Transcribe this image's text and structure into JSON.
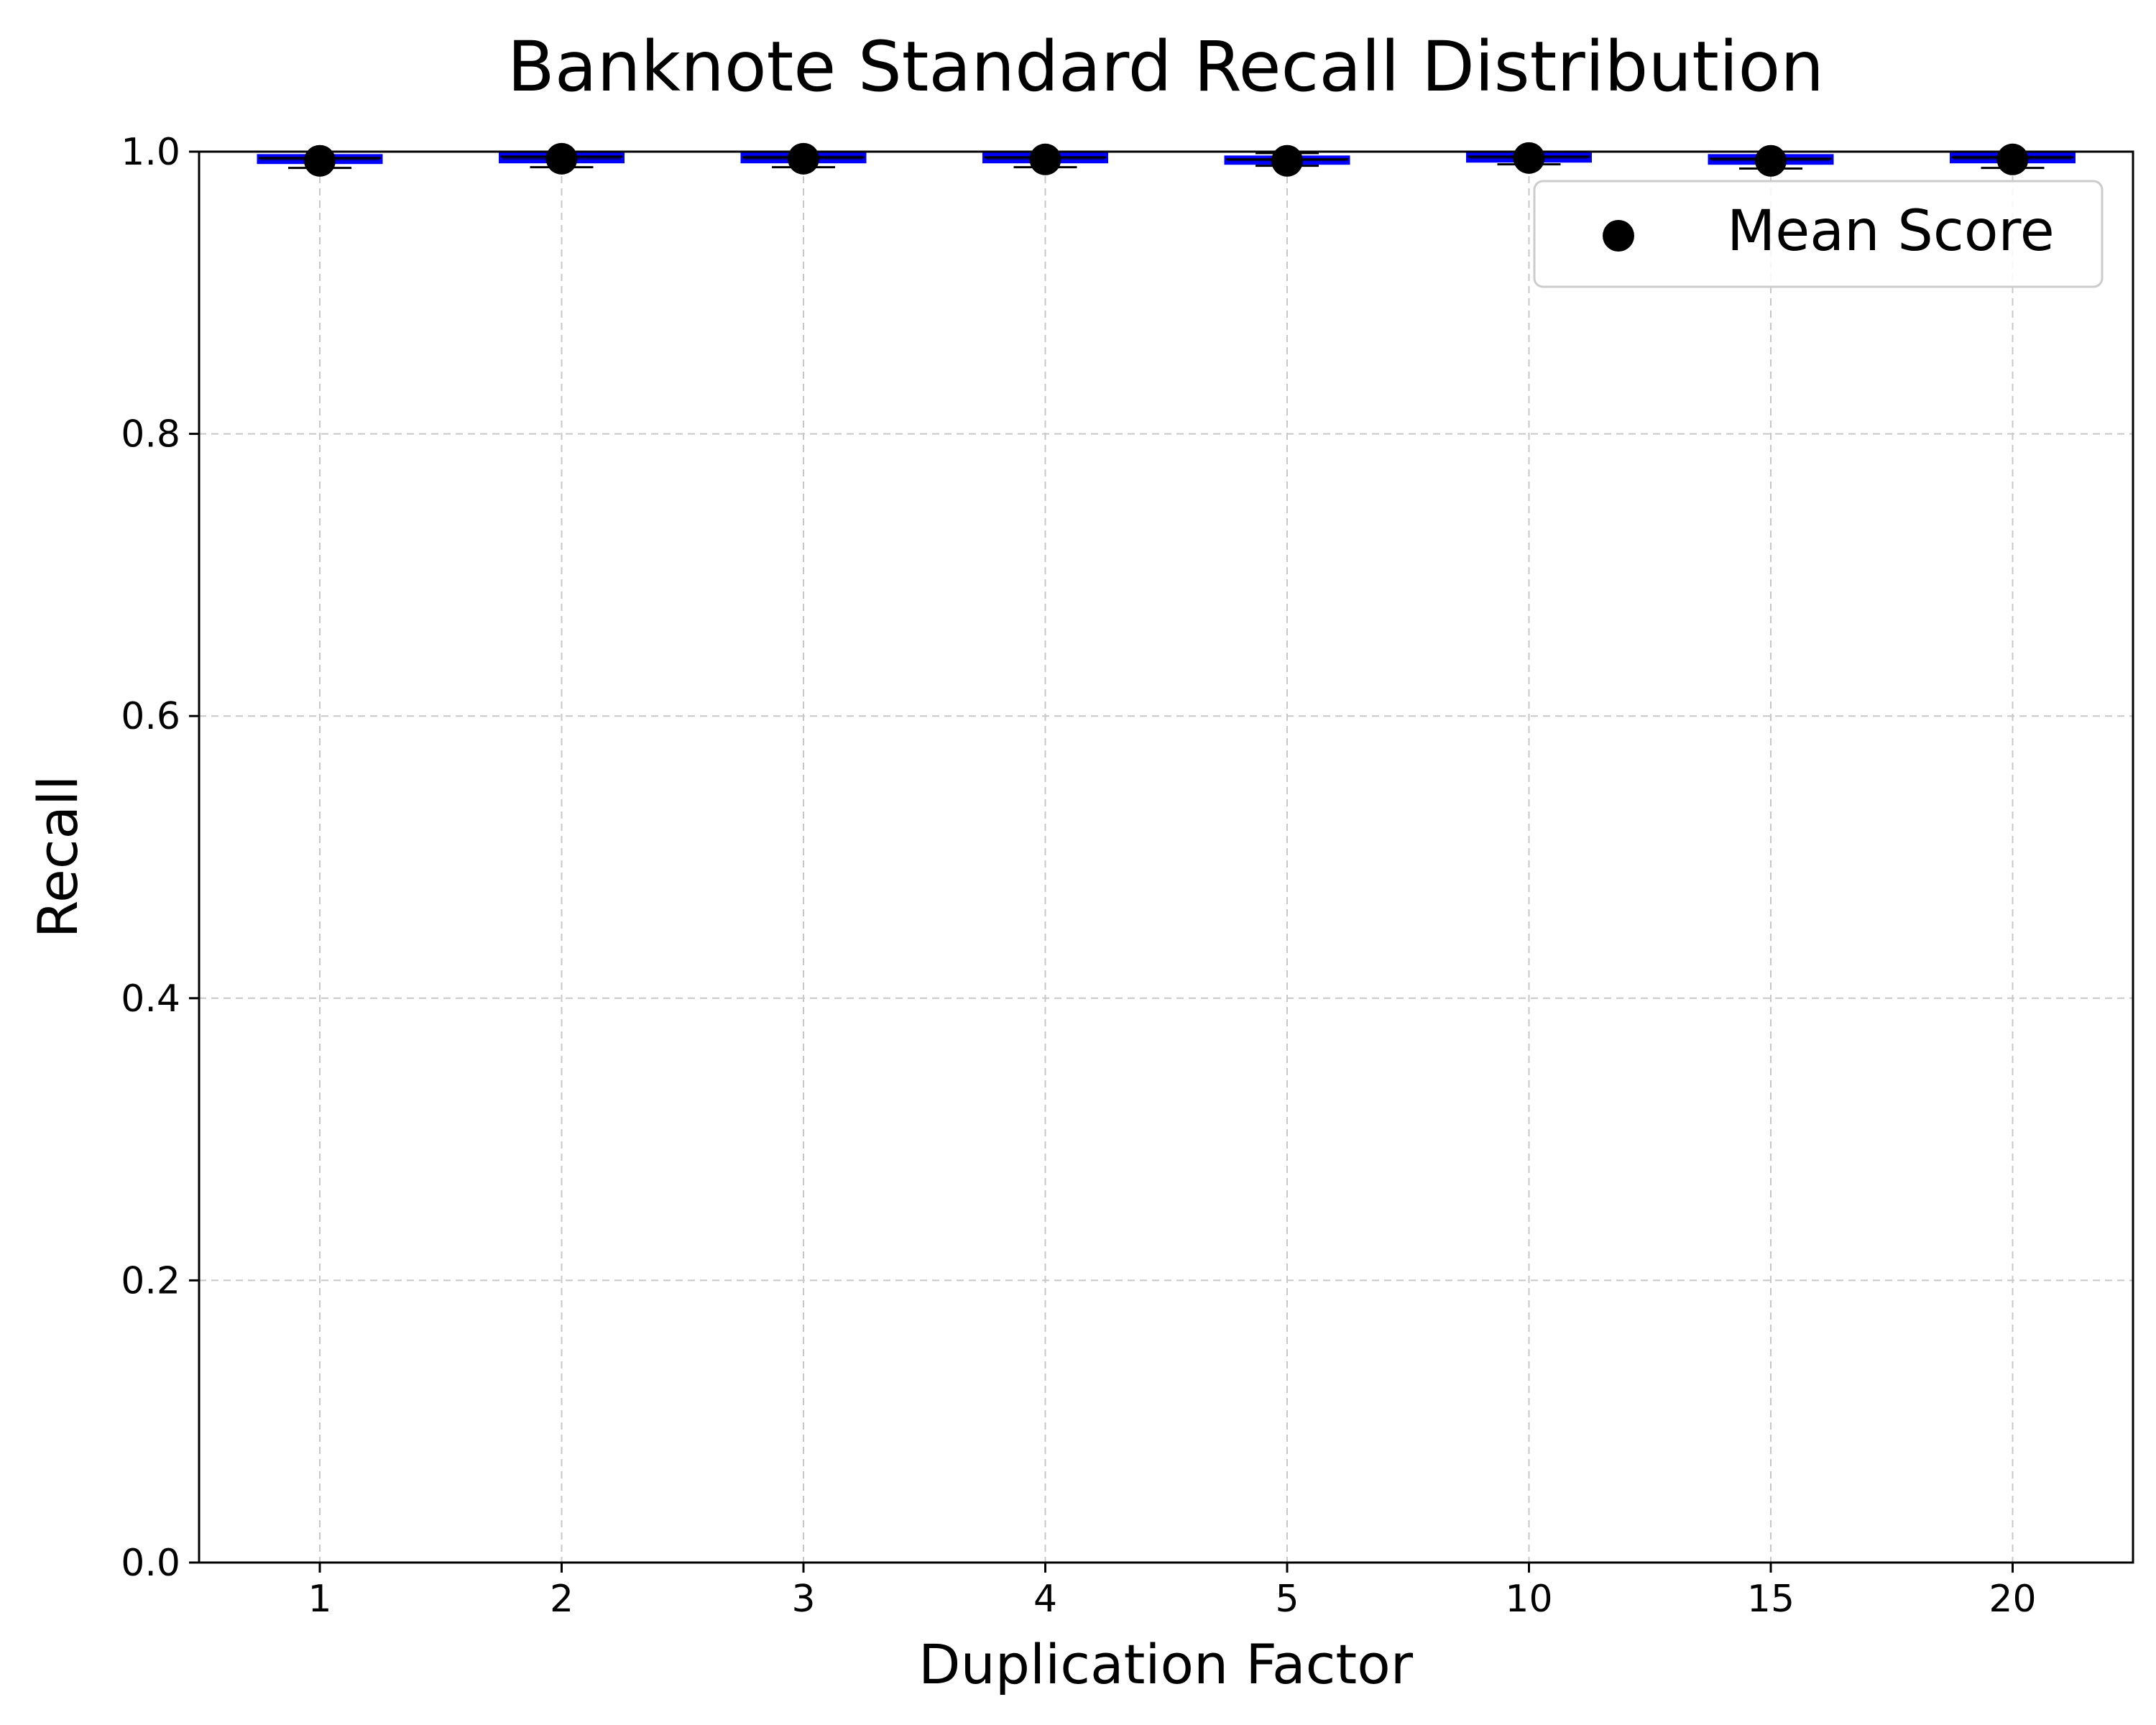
{
  "chart_data": {
    "type": "box",
    "title": "Banknote Standard Recall Distribution",
    "xlabel": "Duplication Factor",
    "ylabel": "Recall",
    "categories": [
      "1",
      "2",
      "3",
      "4",
      "5",
      "10",
      "15",
      "20"
    ],
    "ylim": [
      0,
      1.0
    ],
    "yticks": [
      "0.0",
      "0.2",
      "0.4",
      "0.6",
      "0.8",
      "1.0"
    ],
    "grid": true,
    "legend": {
      "position": "top-right",
      "entries": [
        "Mean Score"
      ]
    },
    "boxes": [
      {
        "category": "1",
        "whisker_low": 0.9885,
        "q1": 0.9925,
        "median": 0.9955,
        "q3": 0.997,
        "whisker_high": 1.0,
        "mean": 0.9935
      },
      {
        "category": "2",
        "whisker_low": 0.989,
        "q1": 0.993,
        "median": 0.9965,
        "q3": 0.9985,
        "whisker_high": 1.0,
        "mean": 0.995
      },
      {
        "category": "3",
        "whisker_low": 0.989,
        "q1": 0.993,
        "median": 0.996,
        "q3": 0.9985,
        "whisker_high": 1.0,
        "mean": 0.995
      },
      {
        "category": "4",
        "whisker_low": 0.989,
        "q1": 0.993,
        "median": 0.996,
        "q3": 0.998,
        "whisker_high": 1.0,
        "mean": 0.9945
      },
      {
        "category": "5",
        "whisker_low": 0.99,
        "q1": 0.992,
        "median": 0.9945,
        "q3": 0.996,
        "whisker_high": 0.999,
        "mean": 0.9935
      },
      {
        "category": "10",
        "whisker_low": 0.991,
        "q1": 0.9935,
        "median": 0.9965,
        "q3": 0.998,
        "whisker_high": 1.0,
        "mean": 0.9955
      },
      {
        "category": "15",
        "whisker_low": 0.988,
        "q1": 0.992,
        "median": 0.995,
        "q3": 0.997,
        "whisker_high": 1.0,
        "mean": 0.9935
      },
      {
        "category": "20",
        "whisker_low": 0.9885,
        "q1": 0.993,
        "median": 0.996,
        "q3": 0.9985,
        "whisker_high": 1.0,
        "mean": 0.9945
      }
    ],
    "colors": {
      "box_edge": "#0000ff",
      "box_fill": "#000080",
      "median": "#000000",
      "whisker": "#000000",
      "mean_marker": "#000000",
      "grid": "#c8c8c8"
    }
  }
}
